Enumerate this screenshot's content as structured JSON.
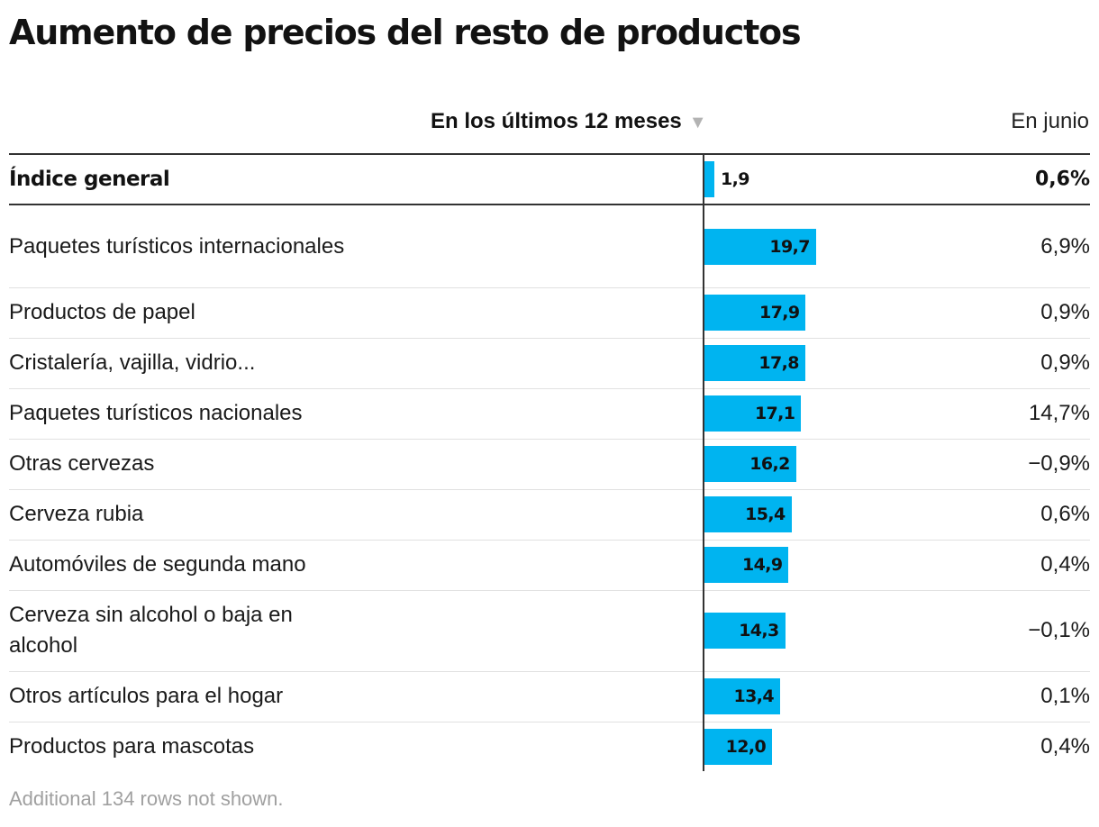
{
  "title": "Aumento de precios del resto de productos",
  "columns": {
    "bar_header": "En los últimos 12 meses",
    "sort_icon": "▼",
    "june_header": "En junio"
  },
  "general": {
    "label": "Índice general",
    "value_label": "1,9",
    "june_label": "0,6%"
  },
  "footnote": "Additional 134 rows not shown.",
  "colors": {
    "bar": "#00b4f0"
  },
  "chart_data": {
    "type": "bar",
    "orientation": "horizontal",
    "title": "Aumento de precios del resto de productos",
    "columns": [
      "En los últimos 12 meses",
      "En junio"
    ],
    "general": {
      "category": "Índice general",
      "value": 1.9,
      "june": 0.6
    },
    "categories": [
      "Paquetes turísticos internacionales",
      "Productos de papel",
      "Cristalería, vajilla, vidrio...",
      "Paquetes turísticos nacionales",
      "Otras cervezas",
      "Cerveza rubia",
      "Automóviles de segunda mano",
      "Cerveza sin alcohol o baja en alcohol",
      "Otros artículos para el hogar",
      "Productos para mascotas"
    ],
    "values": [
      19.7,
      17.9,
      17.8,
      17.1,
      16.2,
      15.4,
      14.9,
      14.3,
      13.4,
      12.0
    ],
    "value_labels": [
      "19,7",
      "17,9",
      "17,8",
      "17,1",
      "16,2",
      "15,4",
      "14,9",
      "14,3",
      "13,4",
      "12,0"
    ],
    "june": [
      6.9,
      0.9,
      0.9,
      14.7,
      -0.9,
      0.6,
      0.4,
      -0.1,
      0.1,
      0.4
    ],
    "june_labels": [
      "6,9%",
      "0,9%",
      "0,9%",
      "14,7%",
      "−0,9%",
      "0,6%",
      "0,4%",
      "−0,1%",
      "0,1%",
      "0,4%"
    ]
  }
}
